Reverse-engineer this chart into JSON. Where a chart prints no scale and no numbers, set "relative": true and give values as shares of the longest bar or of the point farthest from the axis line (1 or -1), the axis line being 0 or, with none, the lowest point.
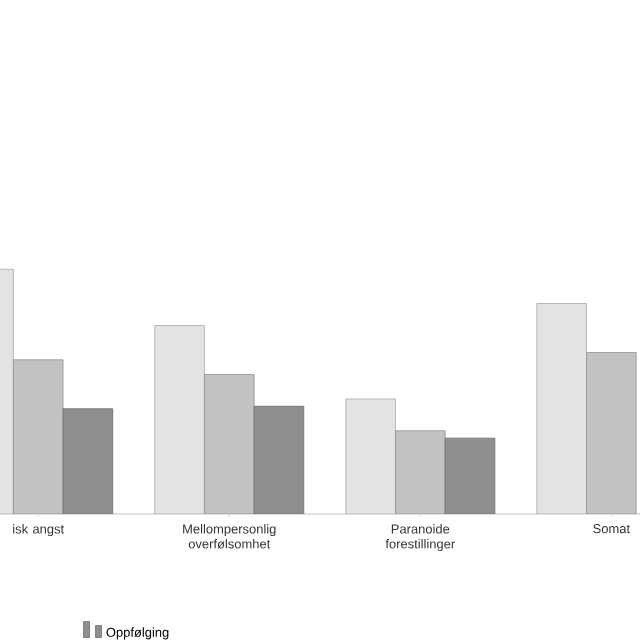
{
  "chart_data": {
    "type": "bar",
    "relative": true,
    "categories": [
      "isk angst",
      "Mellompersonlig overfølsomhet",
      "Paranoide forestillinger",
      "Somat"
    ],
    "series": [
      {
        "color": "#e3e3e3",
        "values": [
          1,
          0.77,
          0.47,
          0.86
        ]
      },
      {
        "color": "#c2c2c2",
        "values": [
          0.63,
          0.57,
          0.34,
          0.66
        ]
      },
      {
        "name": "Oppfølging",
        "color": "#8f8f8f",
        "values": [
          0.43,
          0.44,
          0.31,
          null
        ]
      }
    ],
    "legend": "bottom"
  }
}
